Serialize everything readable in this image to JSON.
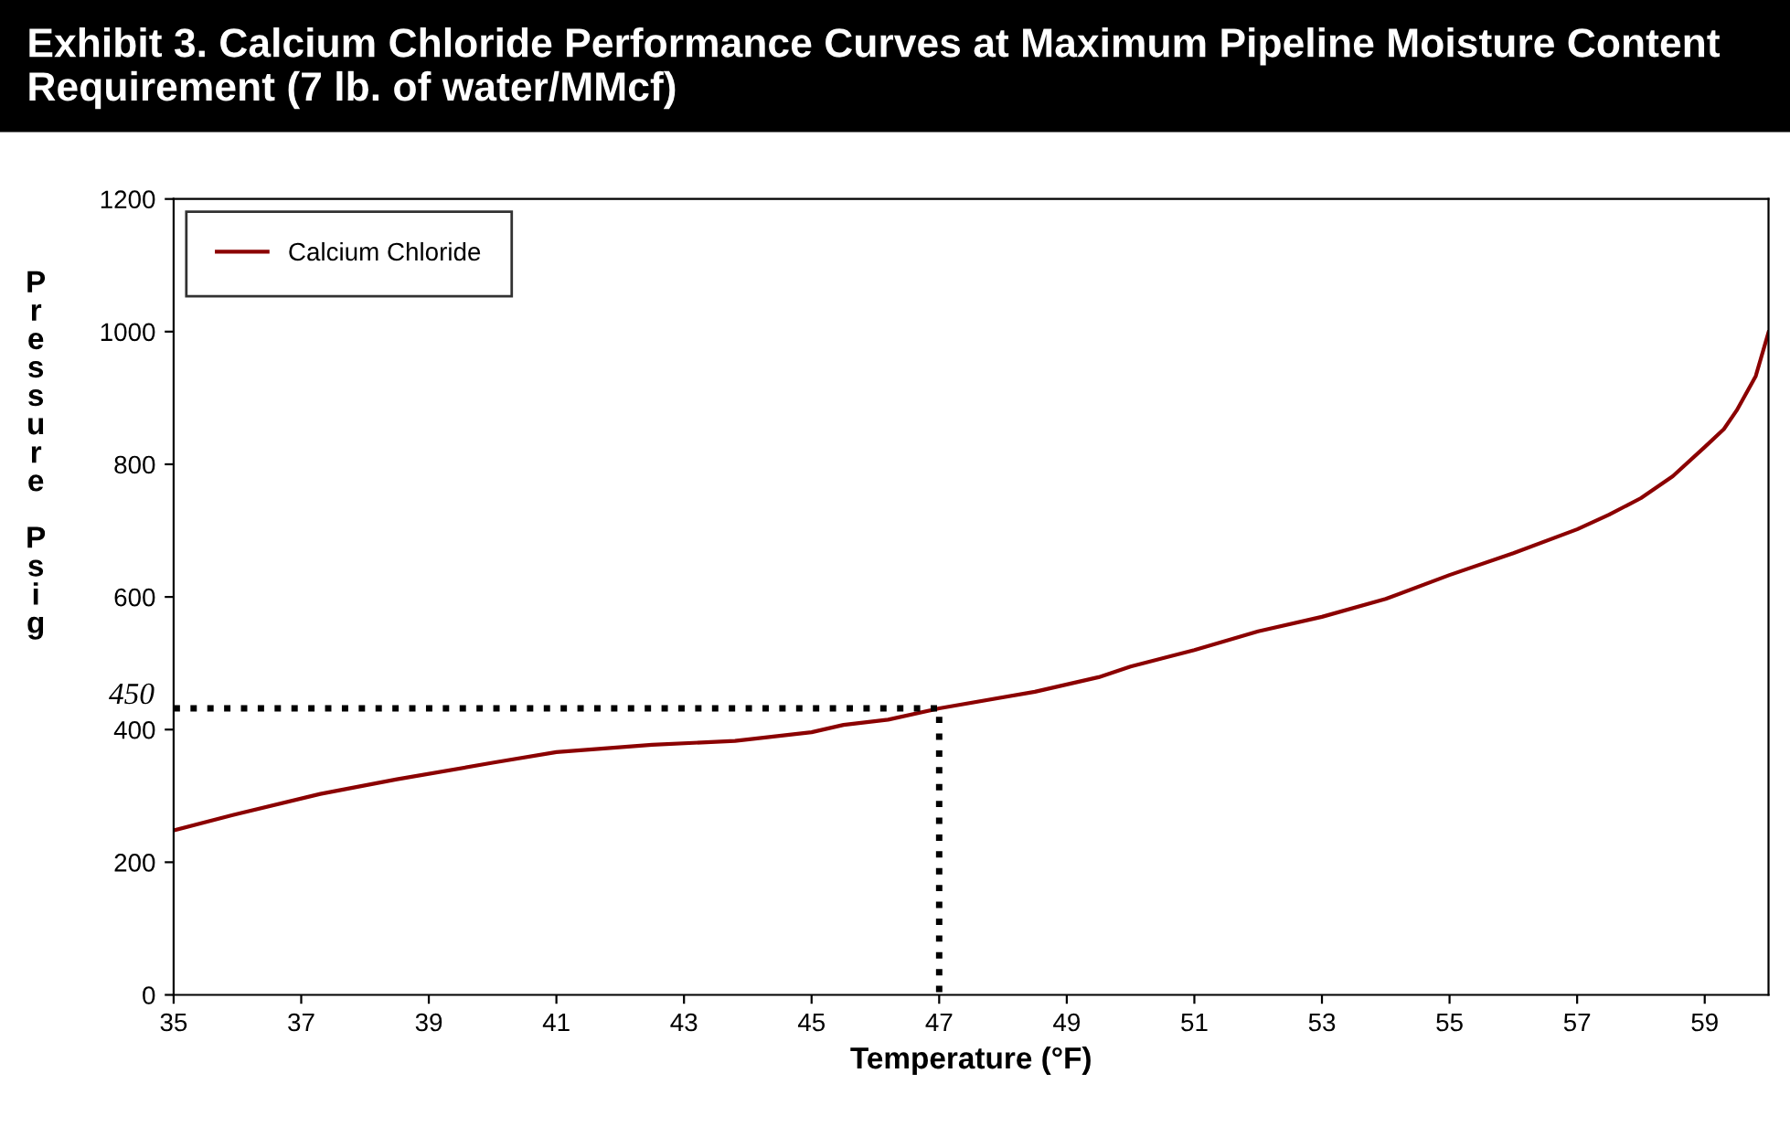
{
  "chart_data": {
    "type": "line",
    "title": "Exhibit 3. Calcium Chloride Performance Curves at Maximum Pipeline Moisture Content Requirement (7 lb. of water/MMcf)",
    "xlabel": "Temperature (°F)",
    "ylabel": "Pressure Psig",
    "series": [
      {
        "name": "Calcium Chloride",
        "color": "#8b0000",
        "line_style": "solid",
        "x": [
          35,
          36,
          37.3,
          38.5,
          40,
          41,
          42.5,
          43.8,
          45,
          45.5,
          46.2,
          47,
          48.5,
          49.5,
          50,
          51,
          52,
          53,
          54,
          55,
          56,
          57,
          57.5,
          58,
          58.5,
          59,
          59.3,
          59.5,
          59.8,
          60
        ],
        "values": [
          248,
          273,
          303,
          325,
          350,
          366,
          377,
          383,
          396,
          407,
          415,
          432,
          457,
          479,
          495,
          520,
          548,
          570,
          597,
          633,
          666,
          702,
          724,
          749,
          782,
          826,
          853,
          881,
          933,
          999
        ]
      },
      {
        "color": "#000000",
        "line_style": "dotted",
        "x": [
          35,
          47,
          47
        ],
        "values": [
          432,
          432,
          0
        ]
      }
    ],
    "annotations": [
      "450"
    ],
    "xlim": [
      35,
      60
    ],
    "xticks": [
      35,
      37,
      39,
      41,
      43,
      45,
      47,
      49,
      51,
      53,
      55,
      57,
      59
    ],
    "ylim": [
      0,
      1200
    ],
    "yticks": [
      0,
      200,
      400,
      600,
      800,
      1000,
      1200
    ],
    "grid": false,
    "legend": "top left",
    "marker": "none"
  }
}
